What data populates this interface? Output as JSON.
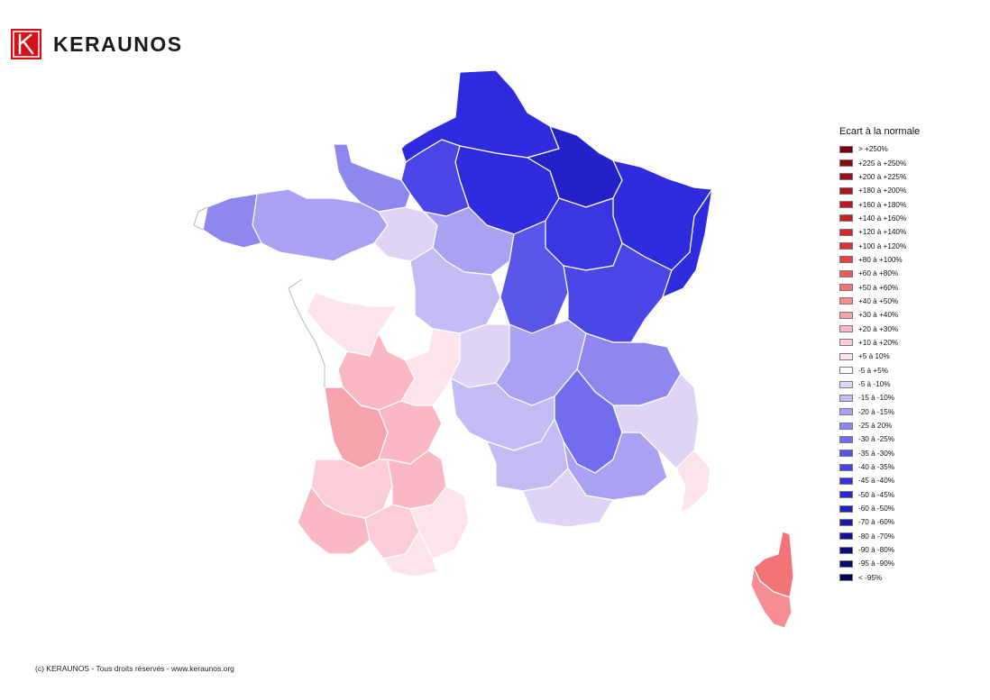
{
  "brand": {
    "name": "KERAUNOS"
  },
  "legend": {
    "title": "Ecart à la normale",
    "items": [
      {
        "label": "> +250%",
        "color": "#7a0010"
      },
      {
        "label": "+225 à +250%",
        "color": "#8a0a14"
      },
      {
        "label": "+200 à +225%",
        "color": "#9a1018"
      },
      {
        "label": "+180 à +200%",
        "color": "#aa161c"
      },
      {
        "label": "+160 à +180%",
        "color": "#b81c22"
      },
      {
        "label": "+140 à +160%",
        "color": "#c52226"
      },
      {
        "label": "+120 à +140%",
        "color": "#d22a2c"
      },
      {
        "label": "+100 à +120%",
        "color": "#dd3336"
      },
      {
        "label": "+80 à +100%",
        "color": "#e64244"
      },
      {
        "label": "+60 à +80%",
        "color": "#ee5a5c"
      },
      {
        "label": "+50 à +60%",
        "color": "#f27476"
      },
      {
        "label": "+40 à +50%",
        "color": "#f58d93"
      },
      {
        "label": "+30 à +40%",
        "color": "#f7a3ad"
      },
      {
        "label": "+20 à +30%",
        "color": "#f9b8c3"
      },
      {
        "label": "+10 à +20%",
        "color": "#fbcdd8"
      },
      {
        "label": "+5 à 10%",
        "color": "#fde3ea"
      },
      {
        "label": "-5 à +5%",
        "color": "#ffffff"
      },
      {
        "label": "-5 à -10%",
        "color": "#ddd4f6"
      },
      {
        "label": "-15 à -10%",
        "color": "#c3bcf4"
      },
      {
        "label": "-20 à -15%",
        "color": "#a9a2f2"
      },
      {
        "label": "-25 à 20%",
        "color": "#8d87ef"
      },
      {
        "label": "-30 à -25%",
        "color": "#726ded"
      },
      {
        "label": "-35 à -30%",
        "color": "#5853ea"
      },
      {
        "label": "-40 à -35%",
        "color": "#4641e8"
      },
      {
        "label": "-45 à -40%",
        "color": "#3431e2"
      },
      {
        "label": "-50 à -45%",
        "color": "#2a27d2"
      },
      {
        "label": "-60 à -50%",
        "color": "#2220c0"
      },
      {
        "label": "-70 à -60%",
        "color": "#1b19ac"
      },
      {
        "label": "-80 à -70%",
        "color": "#141394"
      },
      {
        "label": "-90 à -80%",
        "color": "#0e0d7e"
      },
      {
        "label": "-95 à -90%",
        "color": "#090a6c"
      },
      {
        "label": "< -95%",
        "color": "#05065a"
      }
    ]
  },
  "map": {
    "colors": {
      "north_dark": "#2421c9",
      "north": "#2f2ce0",
      "northeast": "#3a36e4",
      "east": "#4a46e8",
      "east_mid": "#5a56ea",
      "center_east": "#726ded",
      "center": "#8d87ef",
      "center_light": "#a9a2f2",
      "light": "#c3bcf4",
      "lighter": "#ddd4f6",
      "neutral": "#ffffff",
      "pink_faint": "#fde3ea",
      "pink_light": "#fbcdd8",
      "pink": "#f9b8c3",
      "pink_mid": "#f7a3ad",
      "corsica_n": "#f27476",
      "corsica_s": "#f58d93"
    }
  },
  "footer": {
    "text": "(c) KERAUNOS - Tous droits réservés - www.keraunos.org"
  }
}
